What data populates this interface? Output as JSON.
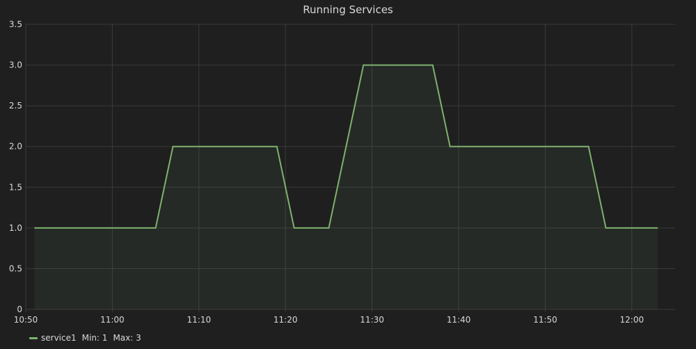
{
  "panel": {
    "title": "Running Services"
  },
  "legend": {
    "items": [
      {
        "name": "service1",
        "min_label": "Min:",
        "min_value": "1",
        "max_label": "Max:",
        "max_value": "3"
      }
    ]
  },
  "colors": {
    "background": "#1f1f20",
    "grid": "#3a3a3a",
    "series": "#7eb26d",
    "fill": "rgba(126,178,109,0.08)",
    "text": "#d8d9da"
  },
  "chart_data": {
    "type": "area",
    "title": "Running Services",
    "xlabel": "",
    "ylabel": "",
    "grid": true,
    "legend_position": "bottom-left",
    "x_tick_labels": [
      "10:50",
      "11:00",
      "11:10",
      "11:20",
      "11:30",
      "11:40",
      "11:50",
      "12:00"
    ],
    "y_tick_labels": [
      "0",
      "0.5",
      "1.0",
      "1.5",
      "2.0",
      "2.5",
      "3.0",
      "3.5"
    ],
    "ylim": [
      0,
      3.5
    ],
    "xlim_minutes": [
      "10:50",
      "12:05"
    ],
    "series": [
      {
        "name": "service1",
        "x": [
          "10:51",
          "11:05",
          "11:07",
          "11:19",
          "11:21",
          "11:25",
          "11:29",
          "11:37",
          "11:39",
          "11:55",
          "11:57",
          "12:03"
        ],
        "values": [
          1,
          1,
          2,
          2,
          1,
          1,
          3,
          3,
          2,
          2,
          1,
          1
        ]
      }
    ]
  }
}
